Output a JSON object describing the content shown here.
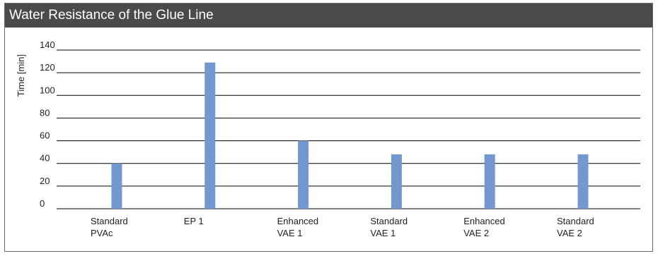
{
  "chart_data": {
    "type": "bar",
    "title": "Water Resistance of the Glue Line",
    "ylabel": "Time [min]",
    "xlabel": "",
    "ylim": [
      0,
      140
    ],
    "yticks": [
      0,
      20,
      40,
      60,
      80,
      100,
      120,
      140
    ],
    "grid": true,
    "bar_color": "#7298cf",
    "categories": [
      [
        "Standard",
        "PVAc"
      ],
      [
        "EP 1"
      ],
      [
        "Enhanced",
        "VAE 1"
      ],
      [
        "Standard",
        "VAE 1"
      ],
      [
        "Enhanced",
        "VAE 2"
      ],
      [
        "Standard",
        "VAE 2"
      ]
    ],
    "values": [
      40,
      129,
      60,
      48,
      48,
      48
    ]
  }
}
